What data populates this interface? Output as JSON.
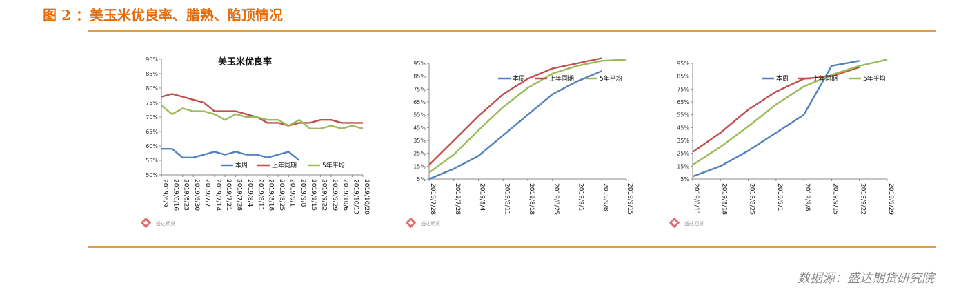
{
  "figure": {
    "title": "图 2 ：美玉米优良率、腊熟、陷顶情况",
    "source": "数据源：盛达期货研究院",
    "watermark": "盛达期货"
  },
  "chart_data": [
    {
      "type": "line",
      "title": "美玉米优良率",
      "ylim": [
        50,
        90
      ],
      "ytick_labels": [
        "90%",
        "85%",
        "80%",
        "75%",
        "70%",
        "65%",
        "60%",
        "55%",
        "50%"
      ],
      "ytick_values": [
        90,
        85,
        80,
        75,
        70,
        65,
        60,
        55,
        50
      ],
      "x_labels": [
        "2019/6/9",
        "2019/6/16",
        "2019/6/23",
        "2019/6/30",
        "2019/7/7",
        "2019/7/14",
        "2019/7/21",
        "2019/7/28",
        "2019/8/4",
        "2019/8/11",
        "2019/8/18",
        "2019/8/25",
        "2019/9/1",
        "2019/9/8",
        "2019/9/15",
        "2019/9/22",
        "2019/9/29",
        "2019/10/6",
        "2019/10/13",
        "2019/10/20"
      ],
      "legend_position": "bottom-center",
      "series": [
        {
          "name": "本周",
          "color": "#4f81bd",
          "values": [
            59,
            59,
            56,
            56,
            57,
            58,
            57,
            58,
            57,
            57,
            56,
            57,
            58,
            55,
            null,
            null,
            null,
            null,
            null,
            null
          ]
        },
        {
          "name": "上年同期",
          "color": "#c0504d",
          "values": [
            77,
            78,
            77,
            76,
            75,
            72,
            72,
            72,
            71,
            70,
            68,
            68,
            67,
            68,
            68,
            69,
            69,
            68,
            68,
            68
          ]
        },
        {
          "name": "5年平均",
          "color": "#9bbb59",
          "values": [
            74,
            71,
            73,
            72,
            72,
            71,
            69,
            71,
            70,
            70,
            69,
            69,
            67,
            69,
            66,
            66,
            67,
            66,
            67,
            66
          ]
        }
      ]
    },
    {
      "type": "line",
      "ylim": [
        5,
        95
      ],
      "ytick_labels": [
        "95%",
        "85%",
        "75%",
        "65%",
        "55%",
        "45%",
        "35%",
        "25%",
        "15%",
        "5%"
      ],
      "ytick_values": [
        95,
        85,
        75,
        65,
        55,
        45,
        35,
        25,
        15,
        5
      ],
      "x_labels": [
        "2019/7/28",
        "2019/7/28",
        "2019/8/4",
        "2019/8/11",
        "2019/8/18",
        "2019/8/25",
        "2019/9/1",
        "2019/9/8",
        "2019/9/15"
      ],
      "legend_position": "top-center",
      "series": [
        {
          "name": "本周",
          "color": "#4f81bd",
          "values": [
            5,
            13,
            23,
            39,
            55,
            71,
            81,
            89,
            null
          ]
        },
        {
          "name": "上年同期",
          "color": "#c0504d",
          "values": [
            16,
            35,
            54,
            71,
            83,
            91,
            95,
            99,
            null
          ]
        },
        {
          "name": "5年平均",
          "color": "#9bbb59",
          "values": [
            10,
            24,
            43,
            61,
            76,
            87,
            93,
            97,
            98
          ]
        }
      ]
    },
    {
      "type": "line",
      "ylim": [
        5,
        95
      ],
      "ytick_labels": [
        "95%",
        "85%",
        "75%",
        "65%",
        "55%",
        "45%",
        "35%",
        "25%",
        "15%",
        "5%"
      ],
      "ytick_values": [
        95,
        85,
        75,
        65,
        55,
        45,
        35,
        25,
        15,
        5
      ],
      "x_labels": [
        "2019/8/11",
        "2019/8/18",
        "2019/8/25",
        "2019/9/1",
        "2019/9/8",
        "2019/9/15",
        "2019/9/22",
        "2019/9/29"
      ],
      "legend_position": "top-center",
      "series": [
        {
          "name": "本周",
          "color": "#4f81bd",
          "values": [
            7,
            15,
            27,
            41,
            55,
            93,
            97,
            null
          ]
        },
        {
          "name": "上年同期",
          "color": "#c0504d",
          "values": [
            26,
            41,
            59,
            73,
            83,
            85,
            92,
            null
          ]
        },
        {
          "name": "5年平均",
          "color": "#9bbb59",
          "values": [
            16,
            30,
            46,
            63,
            77,
            86,
            93,
            98
          ]
        }
      ]
    }
  ]
}
